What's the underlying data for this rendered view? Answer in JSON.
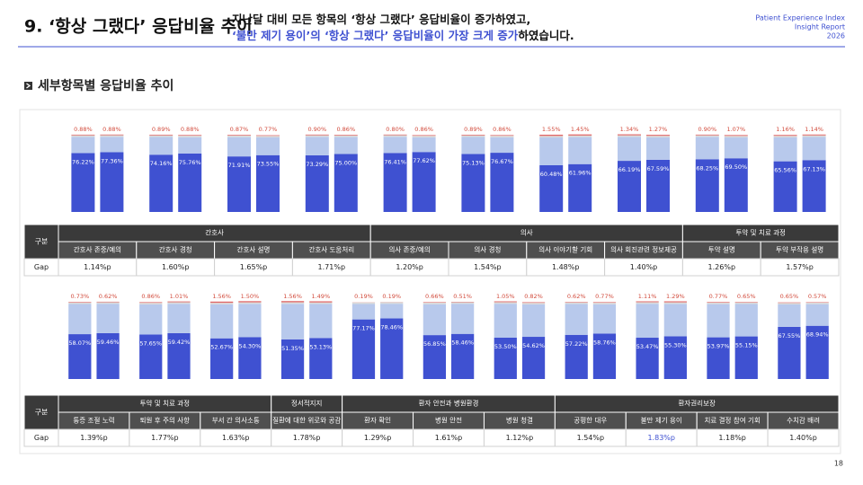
{
  "header": {
    "title": "9. ‘항상 그랬다’ 응답비율 추이",
    "subtitle": [
      [
        "지난달 대비 모든 항목의 ‘항상 그랬다’ 응답비율이 증가하였고,"
      ],
      [
        "‘불만 제기 용이’의 ‘항상 그랬다’ 응답비율이 가장 크게 증가",
        "하였습니다."
      ]
    ],
    "report": [
      "Patient Experience Index",
      "Insight Report",
      "2026"
    ]
  },
  "section": "세부항목별 응답비율 추이",
  "page": "18",
  "chart_data": [
    {
      "type": "stacked_bar",
      "ylim": [
        0,
        100
      ],
      "row_label": "구분",
      "groups": [
        {
          "label": "간호사",
          "span": 4
        },
        {
          "label": "의사",
          "span": 4
        },
        {
          "label": "투약 및 치료 과정",
          "span": 2
        }
      ],
      "categories": [
        "간호사 존중/예의",
        "간호사 경청",
        "간호사 설명",
        "간호사 도움처리",
        "의사 존중/예의",
        "의사 경청",
        "의사 이야기할 기회",
        "의사 회진관련 정보제공",
        "투약 설명",
        "투약 부작용 설명"
      ],
      "bars": [
        {
          "segments": [
            {
              "color": "#3f51d1",
              "values": [
                76.22,
                74.16,
                71.91,
                73.29,
                76.41,
                75.13,
                60.48,
                66.19,
                68.25,
                65.56
              ],
              "value_labels": [
                "76.22%",
                "74.16%",
                "71.91%",
                "73.29%",
                "76.41%",
                "75.13%",
                "60.48%",
                "66.19%",
                "68.25%",
                "65.56%"
              ]
            },
            {
              "color": "#b8c9ec",
              "values": [
                21,
                23,
                25,
                24,
                21,
                22,
                36,
                31,
                29,
                31
              ]
            },
            {
              "color": "#d9d9d9",
              "values": [
                2,
                2,
                2,
                2,
                2,
                2,
                2,
                2,
                2,
                2
              ]
            },
            {
              "color": "#e06666",
              "values": [
                0.88,
                0.89,
                0.87,
                0.9,
                0.8,
                0.89,
                1.55,
                1.34,
                0.9,
                1.16
              ],
              "value_labels": [
                "0.88%",
                "0.89%",
                "0.87%",
                "0.90%",
                "0.80%",
                "0.89%",
                "1.55%",
                "1.34%",
                "0.90%",
                "1.16%"
              ]
            }
          ]
        },
        {
          "segments": [
            {
              "color": "#3f51d1",
              "values": [
                77.36,
                75.76,
                73.55,
                75.0,
                77.62,
                76.67,
                61.96,
                67.59,
                69.5,
                67.13
              ],
              "value_labels": [
                "77.36%",
                "75.76%",
                "73.55%",
                "75.00%",
                "77.62%",
                "76.67%",
                "61.96%",
                "67.59%",
                "69.50%",
                "67.13%"
              ]
            },
            {
              "color": "#b8c9ec",
              "values": [
                20,
                21,
                23,
                22,
                19,
                20,
                35,
                29,
                27,
                30
              ]
            },
            {
              "color": "#d9d9d9",
              "values": [
                2,
                2,
                2,
                2,
                2,
                2,
                2,
                2,
                2,
                2
              ]
            },
            {
              "color": "#e06666",
              "values": [
                0.88,
                0.88,
                0.77,
                0.86,
                0.86,
                0.86,
                1.45,
                1.27,
                1.07,
                1.14
              ],
              "value_labels": [
                "0.88%",
                "0.88%",
                "0.77%",
                "0.86%",
                "0.86%",
                "0.86%",
                "1.45%",
                "1.27%",
                "1.07%",
                "1.14%"
              ]
            }
          ]
        }
      ],
      "gap": {
        "label": "Gap",
        "values": [
          1.14,
          1.6,
          1.65,
          1.71,
          1.2,
          1.54,
          1.48,
          1.4,
          1.26,
          1.57
        ],
        "value_labels": [
          "1.14%p",
          "1.60%p",
          "1.65%p",
          "1.71%p",
          "1.20%p",
          "1.54%p",
          "1.48%p",
          "1.40%p",
          "1.26%p",
          "1.57%p"
        ]
      }
    },
    {
      "type": "stacked_bar",
      "ylim": [
        0,
        100
      ],
      "row_label": "구분",
      "groups": [
        {
          "label": "투약 및 치료 과정",
          "span": 3
        },
        {
          "label": "정서적지지",
          "span": 1
        },
        {
          "label": "환자 안전과 병원환경",
          "span": 3
        },
        {
          "label": "환자권리보장",
          "span": 4
        }
      ],
      "categories": [
        "통증 조절 노력",
        "퇴원 후 주의 사항",
        "부서 간 의사소통",
        "질환에 대한 위로와 공감",
        "환자 확인",
        "병원 안전",
        "병원 청결",
        "공평한 대우",
        "불만 제기 용이",
        "치료 결정 참여 기회",
        "수치감 배려"
      ],
      "bars": [
        {
          "segments": [
            {
              "color": "#3f51d1",
              "values": [
                58.07,
                57.65,
                52.67,
                51.35,
                77.17,
                56.85,
                53.5,
                57.22,
                53.47,
                53.97,
                67.55
              ],
              "value_labels": [
                "58.07%",
                "57.65%",
                "52.67%",
                "51.35%",
                "77.17%",
                "56.85%",
                "53.50%",
                "57.22%",
                "53.47%",
                "53.97%",
                "67.55%"
              ]
            },
            {
              "color": "#b8c9ec",
              "values": [
                39,
                39,
                44,
                46,
                20,
                40,
                44,
                40,
                44,
                43,
                29
              ]
            },
            {
              "color": "#d9d9d9",
              "values": [
                2,
                2,
                2,
                2,
                2,
                2,
                2,
                2,
                2,
                2,
                2
              ]
            },
            {
              "color": "#e06666",
              "values": [
                0.73,
                0.86,
                1.56,
                1.56,
                0.19,
                0.66,
                1.05,
                0.62,
                1.11,
                0.77,
                0.65
              ],
              "value_labels": [
                "0.73%",
                "0.86%",
                "1.56%",
                "1.56%",
                "0.19%",
                "0.66%",
                "1.05%",
                "0.62%",
                "1.11%",
                "0.77%",
                "0.65%"
              ]
            }
          ]
        },
        {
          "segments": [
            {
              "color": "#3f51d1",
              "values": [
                59.46,
                59.42,
                54.3,
                53.13,
                78.46,
                58.46,
                54.62,
                58.76,
                55.3,
                55.15,
                68.94
              ],
              "value_labels": [
                "59.46%",
                "59.42%",
                "54.30%",
                "53.13%",
                "78.46%",
                "58.46%",
                "54.62%",
                "58.76%",
                "55.30%",
                "55.15%",
                "68.94%"
              ]
            },
            {
              "color": "#b8c9ec",
              "values": [
                38,
                38,
                43,
                44,
                19,
                39,
                42,
                38,
                42,
                42,
                28
              ]
            },
            {
              "color": "#d9d9d9",
              "values": [
                2,
                2,
                2,
                2,
                2,
                2,
                2,
                2,
                2,
                2,
                2
              ]
            },
            {
              "color": "#e06666",
              "values": [
                0.62,
                1.01,
                1.5,
                1.49,
                0.19,
                0.51,
                0.82,
                0.77,
                1.29,
                0.65,
                0.57
              ],
              "value_labels": [
                "0.62%",
                "1.01%",
                "1.50%",
                "1.49%",
                "0.19%",
                "0.51%",
                "0.82%",
                "0.77%",
                "1.29%",
                "0.65%",
                "0.57%"
              ]
            }
          ]
        }
      ],
      "gap": {
        "label": "Gap",
        "values": [
          1.39,
          1.77,
          1.63,
          1.78,
          1.29,
          1.61,
          1.12,
          1.54,
          1.83,
          1.18,
          1.4
        ],
        "value_labels": [
          "1.39%p",
          "1.77%p",
          "1.63%p",
          "1.78%p",
          "1.29%p",
          "1.61%p",
          "1.12%p",
          "1.54%p",
          "1.83%p",
          "1.18%p",
          "1.40%p"
        ]
      },
      "highlight": {
        "index": 8,
        "color": "#3f51d1"
      }
    }
  ]
}
